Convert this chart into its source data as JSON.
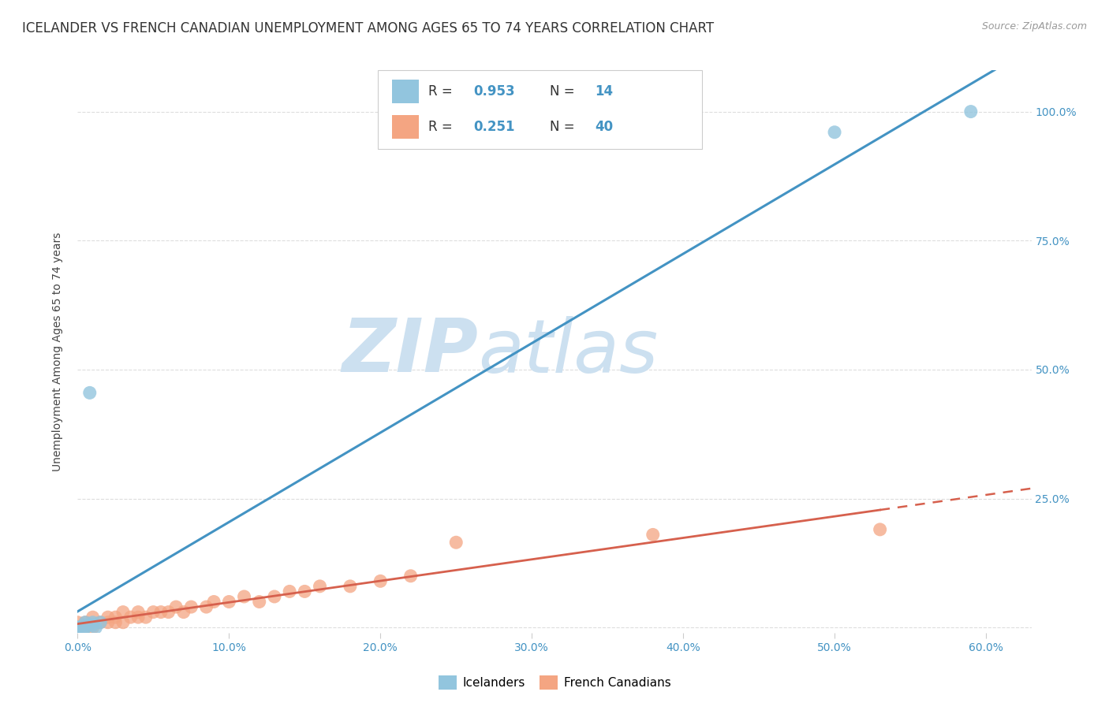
{
  "title": "ICELANDER VS FRENCH CANADIAN UNEMPLOYMENT AMONG AGES 65 TO 74 YEARS CORRELATION CHART",
  "source": "Source: ZipAtlas.com",
  "ylabel": "Unemployment Among Ages 65 to 74 years",
  "xlim": [
    0.0,
    0.63
  ],
  "ylim": [
    -0.01,
    1.08
  ],
  "icelander_color": "#92c5de",
  "icelander_line_color": "#4393c3",
  "french_color": "#f4a582",
  "french_line_color": "#d6604d",
  "icelander_R": 0.953,
  "icelander_N": 14,
  "french_R": 0.251,
  "french_N": 40,
  "watermark_zip": "ZIP",
  "watermark_atlas": "atlas",
  "watermark_color": "#cce0f0",
  "icelander_points_x": [
    0.0,
    0.0,
    0.0,
    0.005,
    0.005,
    0.005,
    0.005,
    0.008,
    0.01,
    0.01,
    0.012,
    0.015,
    0.5,
    0.59
  ],
  "icelander_points_y": [
    0.0,
    0.0,
    0.0,
    0.0,
    0.0,
    0.005,
    0.01,
    0.455,
    0.005,
    0.01,
    0.0,
    0.01,
    0.96,
    1.0
  ],
  "french_points_x": [
    0.0,
    0.0,
    0.0,
    0.0,
    0.005,
    0.005,
    0.01,
    0.01,
    0.015,
    0.02,
    0.02,
    0.025,
    0.025,
    0.03,
    0.03,
    0.035,
    0.04,
    0.04,
    0.045,
    0.05,
    0.055,
    0.06,
    0.065,
    0.07,
    0.075,
    0.085,
    0.09,
    0.1,
    0.11,
    0.12,
    0.13,
    0.14,
    0.15,
    0.16,
    0.18,
    0.2,
    0.22,
    0.25,
    0.38,
    0.53
  ],
  "french_points_y": [
    0.0,
    0.0,
    0.0,
    0.01,
    0.0,
    0.01,
    0.0,
    0.02,
    0.01,
    0.01,
    0.02,
    0.01,
    0.02,
    0.01,
    0.03,
    0.02,
    0.02,
    0.03,
    0.02,
    0.03,
    0.03,
    0.03,
    0.04,
    0.03,
    0.04,
    0.04,
    0.05,
    0.05,
    0.06,
    0.05,
    0.06,
    0.07,
    0.07,
    0.08,
    0.08,
    0.09,
    0.1,
    0.165,
    0.18,
    0.19
  ],
  "background_color": "#ffffff",
  "grid_color": "#dddddd",
  "title_fontsize": 12,
  "axis_label_fontsize": 10,
  "tick_fontsize": 10,
  "right_tick_color": "#4393c3",
  "bottom_tick_color": "#4393c3"
}
